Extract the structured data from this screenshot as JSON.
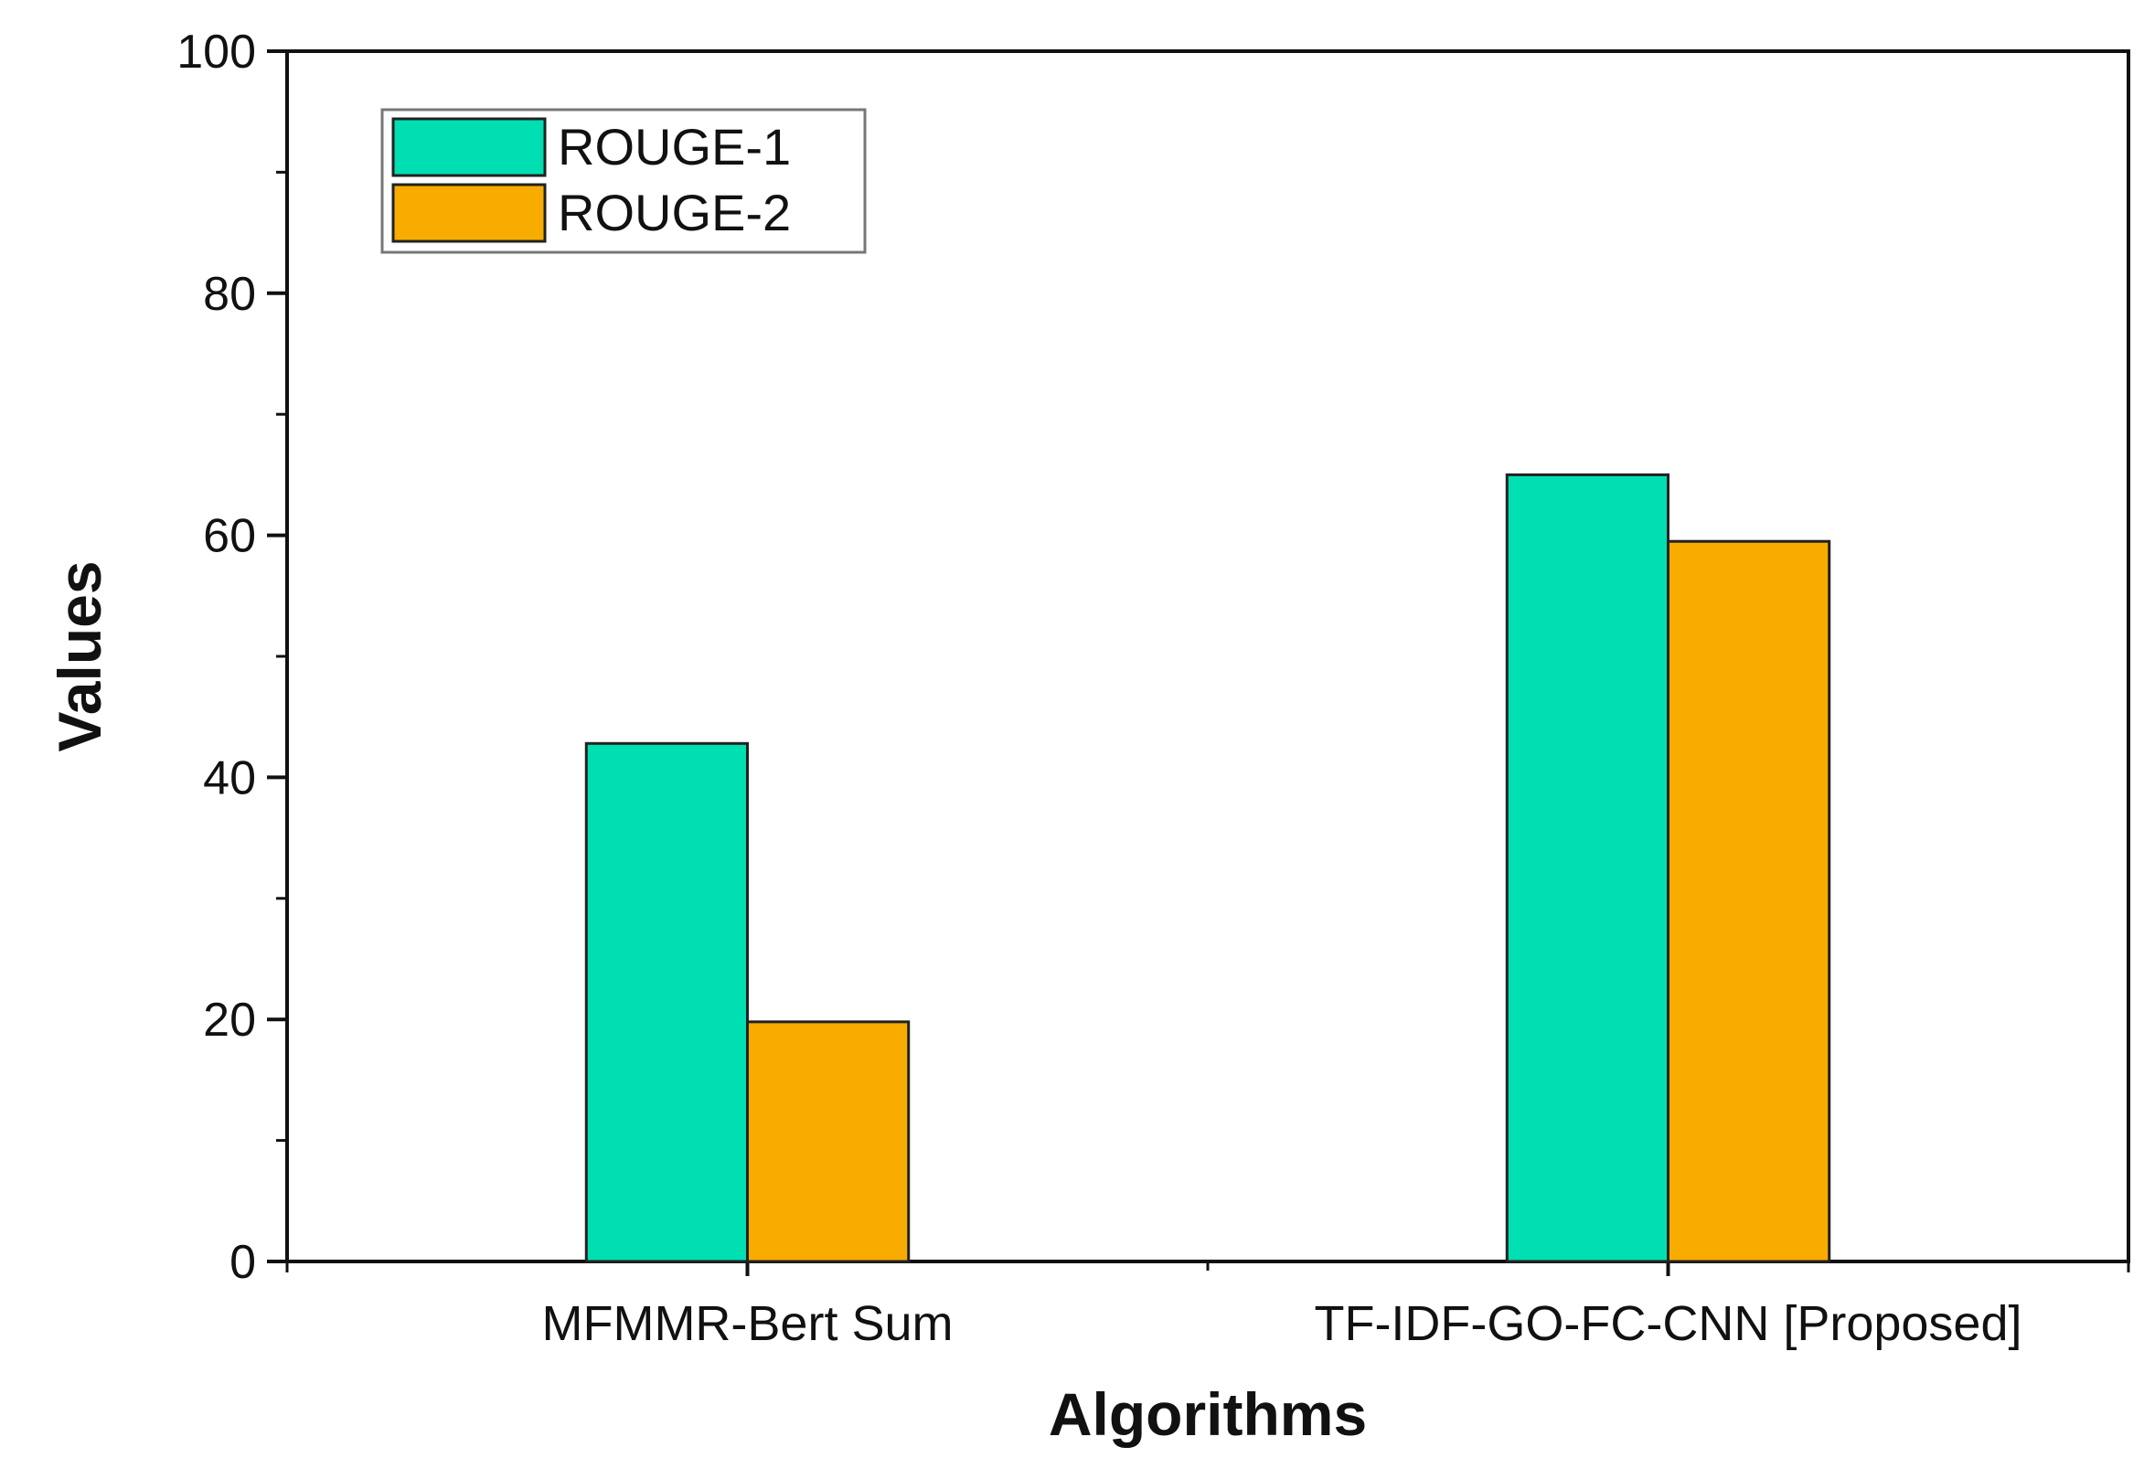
{
  "chart_data": {
    "type": "bar",
    "title": "",
    "xlabel": "Algorithms",
    "ylabel": "Values",
    "categories": [
      "MFMMR-Bert Sum",
      "TF-IDF-GO-FC-CNN [Proposed]"
    ],
    "series": [
      {
        "name": "ROUGE-1",
        "values": [
          42.8,
          65.0
        ],
        "color": "#00DFB1"
      },
      {
        "name": "ROUGE-2",
        "values": [
          19.8,
          59.5
        ],
        "color": "#F8AC00"
      }
    ],
    "ylim": [
      0,
      100
    ],
    "yticks": [
      0,
      20,
      40,
      60,
      80,
      100
    ],
    "grid": false,
    "legend_position": "top-left"
  }
}
